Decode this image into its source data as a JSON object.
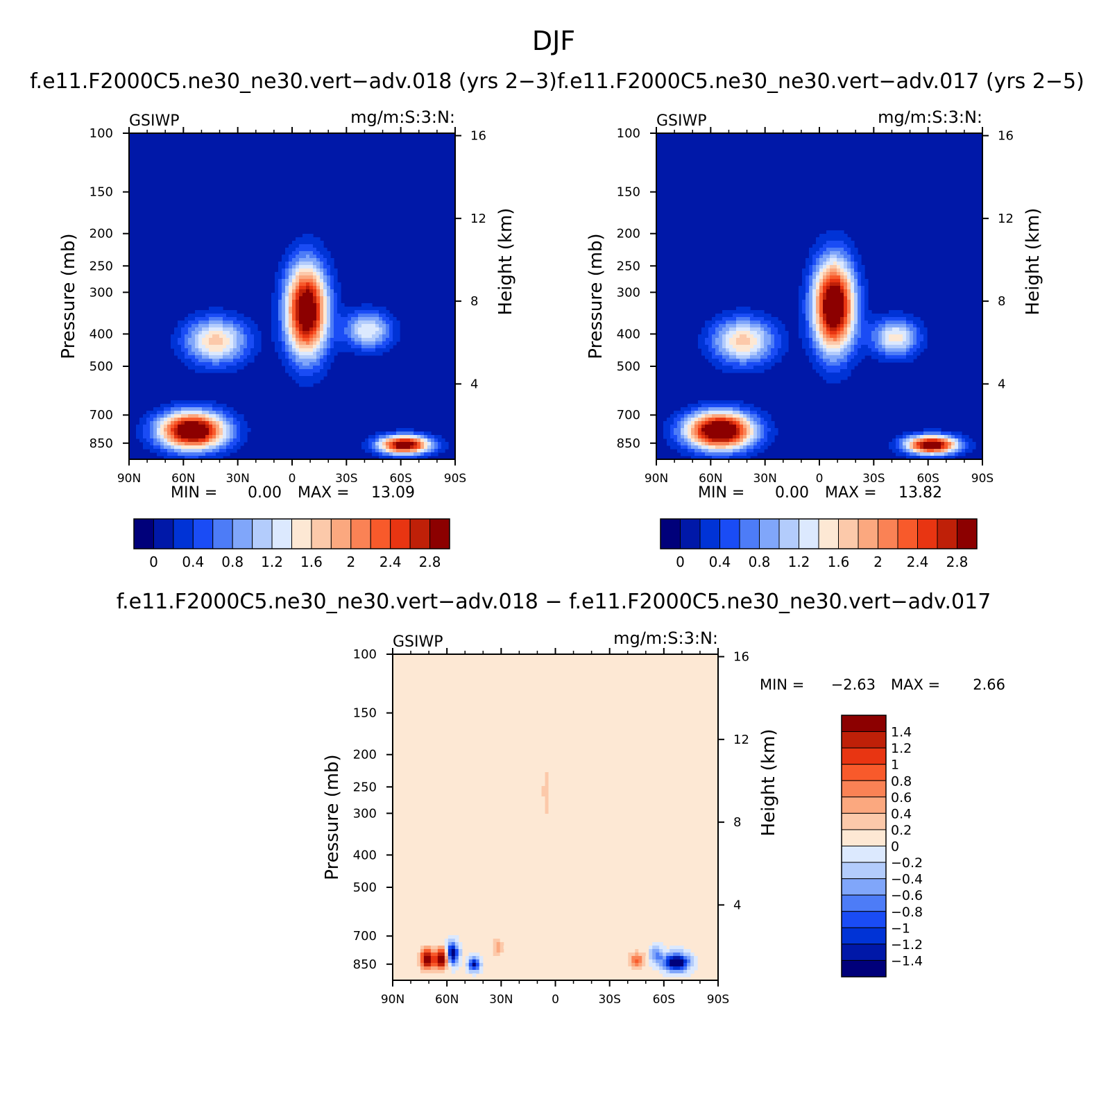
{
  "figure_title": "DJF",
  "chart_data": [
    {
      "type": "heatmap",
      "title": "f.e11.F2000C5.ne30_ne30.vert−adv.018 (yrs 2−3)",
      "left_label": "GSIWP",
      "right_label": "mg/m:S:3:N:",
      "xlabel": "",
      "ylabel": "Pressure (mb)",
      "ylabel_right": "Height (km)",
      "x_ticks": [
        "90N",
        "60N",
        "30N",
        "0",
        "30S",
        "60S",
        "90S"
      ],
      "x_range": [
        90,
        -90
      ],
      "y_ticks": [
        100,
        150,
        200,
        250,
        300,
        400,
        500,
        700,
        850
      ],
      "y_range_mb": [
        100,
        950
      ],
      "y_log": true,
      "right_ticks": [
        16,
        12,
        8,
        4
      ],
      "min_label": "MIN =",
      "min_value": "0.00",
      "max_label": "MAX =",
      "max_value": "13.09",
      "colorbar": {
        "orientation": "horizontal",
        "levels": [
          0,
          0.2,
          0.4,
          0.6,
          0.8,
          1,
          1.2,
          1.4,
          1.6,
          1.8,
          2,
          2.2,
          2.4,
          2.6,
          2.8
        ],
        "tick_labels": [
          "0",
          "0.4",
          "0.8",
          "1.2",
          "1.6",
          "2",
          "2.4",
          "2.8"
        ],
        "colors": [
          "#00007a",
          "#0018a8",
          "#0033d6",
          "#1a4cf5",
          "#4d7cf7",
          "#80a6fa",
          "#b3ccfc",
          "#dce9fe",
          "#fde8d4",
          "#fcc9aa",
          "#fba87f",
          "#fa8255",
          "#f85a2b",
          "#e83512",
          "#bf2008",
          "#8c0000"
        ]
      },
      "field_features": [
        {
          "lat": 55,
          "p": 780,
          "value": 3.5,
          "lat_width": 13,
          "logp_width": 0.09
        },
        {
          "lat": 42,
          "p": 420,
          "value": 1.7,
          "lat_width": 12,
          "logp_width": 0.11
        },
        {
          "lat": -8,
          "p": 340,
          "value": 3.4,
          "lat_width": 8,
          "logp_width": 0.22
        },
        {
          "lat": -62,
          "p": 860,
          "value": 3.2,
          "lat_width": 10,
          "logp_width": 0.045
        },
        {
          "lat": -42,
          "p": 390,
          "value": 1.4,
          "lat_width": 9,
          "logp_width": 0.09
        }
      ]
    },
    {
      "type": "heatmap",
      "title": "f.e11.F2000C5.ne30_ne30.vert−adv.017 (yrs 2−5)",
      "left_label": "GSIWP",
      "right_label": "mg/m:S:3:N:",
      "xlabel": "",
      "ylabel": "Pressure (mb)",
      "ylabel_right": "Height (km)",
      "x_ticks": [
        "90N",
        "60N",
        "30N",
        "0",
        "30S",
        "60S",
        "90S"
      ],
      "x_range": [
        90,
        -90
      ],
      "y_ticks": [
        100,
        150,
        200,
        250,
        300,
        400,
        500,
        700,
        850
      ],
      "y_range_mb": [
        100,
        950
      ],
      "y_log": true,
      "right_ticks": [
        16,
        12,
        8,
        4
      ],
      "min_label": "MIN =",
      "min_value": "0.00",
      "max_label": "MAX =",
      "max_value": "13.82",
      "colorbar": {
        "orientation": "horizontal",
        "levels": [
          0,
          0.2,
          0.4,
          0.6,
          0.8,
          1,
          1.2,
          1.4,
          1.6,
          1.8,
          2,
          2.2,
          2.4,
          2.6,
          2.8
        ],
        "tick_labels": [
          "0",
          "0.4",
          "0.8",
          "1.2",
          "1.6",
          "2",
          "2.4",
          "2.8"
        ],
        "colors": [
          "#00007a",
          "#0018a8",
          "#0033d6",
          "#1a4cf5",
          "#4d7cf7",
          "#80a6fa",
          "#b3ccfc",
          "#dce9fe",
          "#fde8d4",
          "#fcc9aa",
          "#fba87f",
          "#fa8255",
          "#f85a2b",
          "#e83512",
          "#bf2008",
          "#8c0000"
        ]
      },
      "field_features": [
        {
          "lat": 55,
          "p": 780,
          "value": 3.6,
          "lat_width": 13,
          "logp_width": 0.09
        },
        {
          "lat": 42,
          "p": 420,
          "value": 1.7,
          "lat_width": 12,
          "logp_width": 0.11
        },
        {
          "lat": -8,
          "p": 330,
          "value": 3.5,
          "lat_width": 8,
          "logp_width": 0.22
        },
        {
          "lat": -62,
          "p": 860,
          "value": 3.3,
          "lat_width": 10,
          "logp_width": 0.045
        },
        {
          "lat": -42,
          "p": 410,
          "value": 1.5,
          "lat_width": 9,
          "logp_width": 0.09
        }
      ]
    },
    {
      "type": "heatmap",
      "title": "f.e11.F2000C5.ne30_ne30.vert−adv.018 − f.e11.F2000C5.ne30_ne30.vert−adv.017",
      "left_label": "GSIWP",
      "right_label": "mg/m:S:3:N:",
      "xlabel": "",
      "ylabel": "Pressure (mb)",
      "ylabel_right": "Height (km)",
      "x_ticks": [
        "90N",
        "60N",
        "30N",
        "0",
        "30S",
        "60S",
        "90S"
      ],
      "x_range": [
        90,
        -90
      ],
      "y_ticks": [
        100,
        150,
        200,
        250,
        300,
        400,
        500,
        700,
        850
      ],
      "y_range_mb": [
        100,
        950
      ],
      "y_log": true,
      "right_ticks": [
        16,
        12,
        8,
        4
      ],
      "min_label": "MIN =",
      "min_value": "−2.63",
      "max_label": "MAX =",
      "max_value": "2.66",
      "colorbar": {
        "orientation": "vertical",
        "levels": [
          -1.4,
          -1.2,
          -1,
          -0.8,
          -0.6,
          -0.4,
          -0.2,
          0,
          0.2,
          0.4,
          0.6,
          0.8,
          1,
          1.2,
          1.4
        ],
        "tick_labels": [
          "1.4",
          "1.2",
          "1",
          "0.8",
          "0.6",
          "0.4",
          "0.2",
          "0",
          "−0.2",
          "−0.4",
          "−0.6",
          "−0.8",
          "−1",
          "−1.2",
          "−1.4"
        ],
        "colors": [
          "#00007a",
          "#0018a8",
          "#0033d6",
          "#1a4cf5",
          "#4d7cf7",
          "#80a6fa",
          "#b3ccfc",
          "#dce9fe",
          "#fde8d4",
          "#fcc9aa",
          "#fba87f",
          "#fa8255",
          "#f85a2b",
          "#e83512",
          "#bf2008",
          "#8c0000"
        ]
      },
      "field_features": [
        {
          "lat": 71,
          "p": 820,
          "value": 1.8,
          "lat_width": 2.5,
          "logp_width": 0.05
        },
        {
          "lat": 63,
          "p": 820,
          "value": 1.8,
          "lat_width": 2.5,
          "logp_width": 0.05
        },
        {
          "lat": 57,
          "p": 790,
          "value": -1.6,
          "lat_width": 2.2,
          "logp_width": 0.05
        },
        {
          "lat": 45,
          "p": 850,
          "value": -1.5,
          "lat_width": 2,
          "logp_width": 0.03
        },
        {
          "lat": 32,
          "p": 760,
          "value": 0.5,
          "lat_width": 2,
          "logp_width": 0.05
        },
        {
          "lat": -45,
          "p": 830,
          "value": 0.9,
          "lat_width": 3,
          "logp_width": 0.04
        },
        {
          "lat": -67,
          "p": 840,
          "value": -1.9,
          "lat_width": 4.5,
          "logp_width": 0.04
        },
        {
          "lat": -56,
          "p": 800,
          "value": -0.7,
          "lat_width": 2.5,
          "logp_width": 0.04
        },
        {
          "lat": 5,
          "p": 260,
          "value": 0.4,
          "lat_width": 1.5,
          "logp_width": 0.12
        }
      ]
    }
  ]
}
